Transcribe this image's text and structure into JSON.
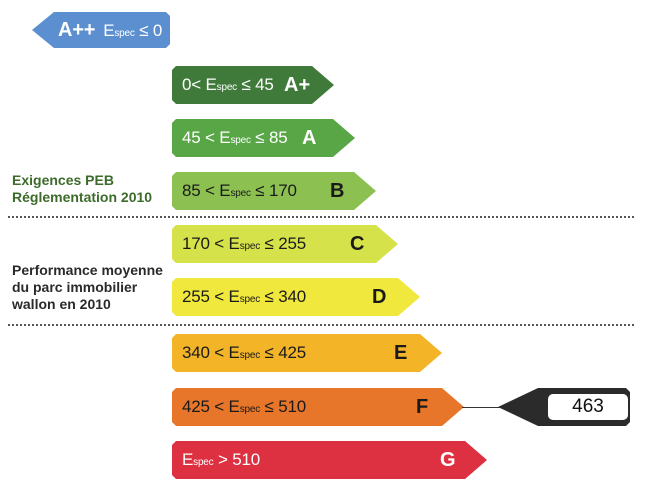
{
  "bands": [
    {
      "id": "a2",
      "label": "A++",
      "range_pre": "",
      "range_post": "≤ 0",
      "grade": "",
      "color": "#5b8fd0",
      "light": true,
      "pointer": "left"
    },
    {
      "id": "a1",
      "label": "",
      "range_pre": "0<",
      "range_post": "≤ 45",
      "grade": "A+",
      "color": "#3f7a3a",
      "light": true,
      "pointer": "right"
    },
    {
      "id": "a",
      "label": "",
      "range_pre": "45 <",
      "range_post": "≤ 85",
      "grade": "A",
      "color": "#58a646",
      "light": true,
      "pointer": "right"
    },
    {
      "id": "b",
      "label": "",
      "range_pre": "85 <",
      "range_post": "≤ 170",
      "grade": "B",
      "color": "#8cc152",
      "light": false,
      "pointer": "right"
    },
    {
      "id": "c",
      "label": "",
      "range_pre": "170 <",
      "range_post": "≤ 255",
      "grade": "C",
      "color": "#d6e24a",
      "light": false,
      "pointer": "right"
    },
    {
      "id": "d",
      "label": "",
      "range_pre": "255 <",
      "range_post": "≤ 340",
      "grade": "D",
      "color": "#f0e83c",
      "light": false,
      "pointer": "right"
    },
    {
      "id": "e",
      "label": "",
      "range_pre": "340 <",
      "range_post": "≤ 425",
      "grade": "E",
      "color": "#f3b428",
      "light": false,
      "pointer": "right"
    },
    {
      "id": "f",
      "label": "",
      "range_pre": "425 <",
      "range_post": "≤ 510",
      "grade": "F",
      "color": "#e8762a",
      "light": false,
      "pointer": "right"
    },
    {
      "id": "g",
      "label": "",
      "range_pre": "",
      "range_post": "> 510",
      "grade": "G",
      "color": "#dd3040",
      "light": true,
      "pointer": "right"
    }
  ],
  "espec": {
    "main": "E",
    "sub": "spec"
  },
  "side_labels": {
    "peb": [
      "Exigences PEB",
      "Réglementation 2010"
    ],
    "moyenne": [
      "Performance moyenne",
      "du parc immobilier",
      "wallon en 2010"
    ]
  },
  "score": {
    "value": "463",
    "band": "f"
  },
  "colors": {
    "outline": "#222222",
    "side_green": "#3c6b2b"
  }
}
